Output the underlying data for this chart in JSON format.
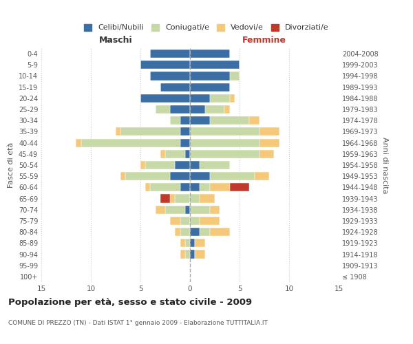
{
  "age_groups": [
    "100+",
    "95-99",
    "90-94",
    "85-89",
    "80-84",
    "75-79",
    "70-74",
    "65-69",
    "60-64",
    "55-59",
    "50-54",
    "45-49",
    "40-44",
    "35-39",
    "30-34",
    "25-29",
    "20-24",
    "15-19",
    "10-14",
    "5-9",
    "0-4"
  ],
  "birth_years": [
    "≤ 1908",
    "1909-1913",
    "1914-1918",
    "1919-1923",
    "1924-1928",
    "1929-1933",
    "1934-1938",
    "1939-1943",
    "1944-1948",
    "1949-1953",
    "1954-1958",
    "1959-1963",
    "1964-1968",
    "1969-1973",
    "1974-1978",
    "1979-1983",
    "1984-1988",
    "1989-1993",
    "1994-1998",
    "1999-2003",
    "2004-2008"
  ],
  "maschi": {
    "celibi": [
      0,
      0,
      0,
      0,
      0,
      0,
      0.5,
      0,
      1,
      2,
      1.5,
      0.5,
      1,
      1,
      1,
      2,
      5,
      3,
      4,
      5,
      4
    ],
    "coniugati": [
      0,
      0,
      0.5,
      0.5,
      1,
      1,
      2,
      1.5,
      3,
      4.5,
      3,
      2,
      10,
      6,
      1,
      1.5,
      0,
      0,
      0,
      0,
      0
    ],
    "vedovi": [
      0,
      0,
      0.5,
      0.5,
      0.5,
      1,
      1,
      0.5,
      0.5,
      0.5,
      0.5,
      0.5,
      0.5,
      0.5,
      0,
      0,
      0,
      0,
      0,
      0,
      0
    ],
    "divorziati": [
      0,
      0,
      0,
      0,
      0,
      0,
      0,
      1,
      0,
      0,
      0,
      0,
      0,
      0,
      0,
      0,
      0,
      0,
      0,
      0,
      0
    ]
  },
  "femmine": {
    "nubili": [
      0,
      0,
      0.5,
      0.5,
      1,
      0,
      0,
      0,
      1,
      2,
      1,
      0,
      0,
      0,
      2,
      1.5,
      2,
      4,
      4,
      5,
      4
    ],
    "coniugate": [
      0,
      0,
      0,
      0,
      1,
      1,
      2,
      1,
      1,
      4.5,
      3,
      7,
      7,
      7,
      4,
      2,
      2,
      0,
      1,
      0,
      0
    ],
    "vedove": [
      0,
      0,
      1,
      1,
      2,
      2,
      1,
      1.5,
      2,
      1.5,
      0,
      1.5,
      2,
      2,
      1,
      0.5,
      0.5,
      0,
      0,
      0,
      0
    ],
    "divorziate": [
      0,
      0,
      0,
      0,
      0,
      0,
      0,
      0,
      2,
      0,
      0,
      0,
      0,
      0,
      0,
      0,
      0,
      0,
      0,
      0,
      0
    ]
  },
  "colors": {
    "celibi": "#3a6ea5",
    "coniugati": "#c8d9a8",
    "vedovi": "#f5c97a",
    "divorziati": "#c0392b"
  },
  "xlim": 15,
  "title": "Popolazione per età, sesso e stato civile - 2009",
  "subtitle": "COMUNE DI PREZZO (TN) - Dati ISTAT 1° gennaio 2009 - Elaborazione TUTTITALIA.IT",
  "ylabel_left": "Fasce di età",
  "ylabel_right": "Anni di nascita",
  "xlabel_maschi": "Maschi",
  "xlabel_femmine": "Femmine",
  "legend_labels": [
    "Celibi/Nubili",
    "Coniugati/e",
    "Vedovi/e",
    "Divorziati/e"
  ],
  "background_color": "#ffffff",
  "grid_color": "#cccccc"
}
